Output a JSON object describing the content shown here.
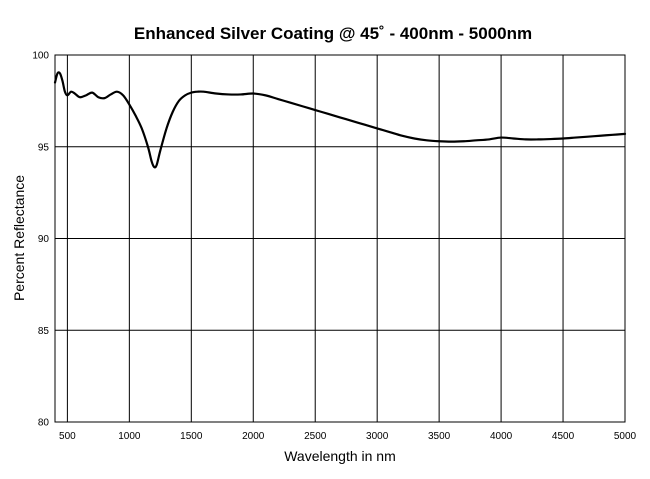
{
  "chart_data": {
    "type": "line",
    "title": "Enhanced Silver Coating @ 45˚ - 400nm - 5000nm",
    "xlabel": "Wavelength in nm",
    "ylabel": "Percent Reflectance",
    "xlim": [
      400,
      5000
    ],
    "ylim": [
      80,
      100
    ],
    "xticks": [
      500,
      1000,
      1500,
      2000,
      2500,
      3000,
      3500,
      4000,
      4500,
      5000
    ],
    "yticks": [
      80,
      85,
      90,
      95,
      100
    ],
    "grid": true,
    "series": [
      {
        "x": [
          400,
          420,
          440,
          460,
          480,
          500,
          530,
          560,
          600,
          650,
          700,
          750,
          800,
          850,
          900,
          950,
          1000,
          1050,
          1100,
          1150,
          1180,
          1200,
          1220,
          1250,
          1300,
          1350,
          1400,
          1450,
          1500,
          1550,
          1600,
          1700,
          1800,
          1900,
          2000,
          2100,
          2200,
          2300,
          2400,
          2500,
          2600,
          2700,
          2800,
          2900,
          3000,
          3100,
          3200,
          3300,
          3400,
          3500,
          3600,
          3700,
          3800,
          3900,
          4000,
          4100,
          4200,
          4300,
          4400,
          4500,
          4600,
          4700,
          4800,
          4900,
          5000
        ],
        "y": [
          98.5,
          99.0,
          99.0,
          98.6,
          98.0,
          97.8,
          98.0,
          97.9,
          97.7,
          97.8,
          97.95,
          97.7,
          97.65,
          97.85,
          98.0,
          97.8,
          97.3,
          96.7,
          96.0,
          95.0,
          94.2,
          93.9,
          94.0,
          94.8,
          96.0,
          96.9,
          97.5,
          97.8,
          97.95,
          98.0,
          98.0,
          97.9,
          97.85,
          97.85,
          97.9,
          97.8,
          97.6,
          97.4,
          97.2,
          97.0,
          96.8,
          96.6,
          96.4,
          96.2,
          96.0,
          95.8,
          95.6,
          95.45,
          95.35,
          95.3,
          95.28,
          95.3,
          95.35,
          95.4,
          95.5,
          95.45,
          95.4,
          95.4,
          95.42,
          95.45,
          95.5,
          95.55,
          95.6,
          95.65,
          95.7
        ]
      }
    ]
  }
}
